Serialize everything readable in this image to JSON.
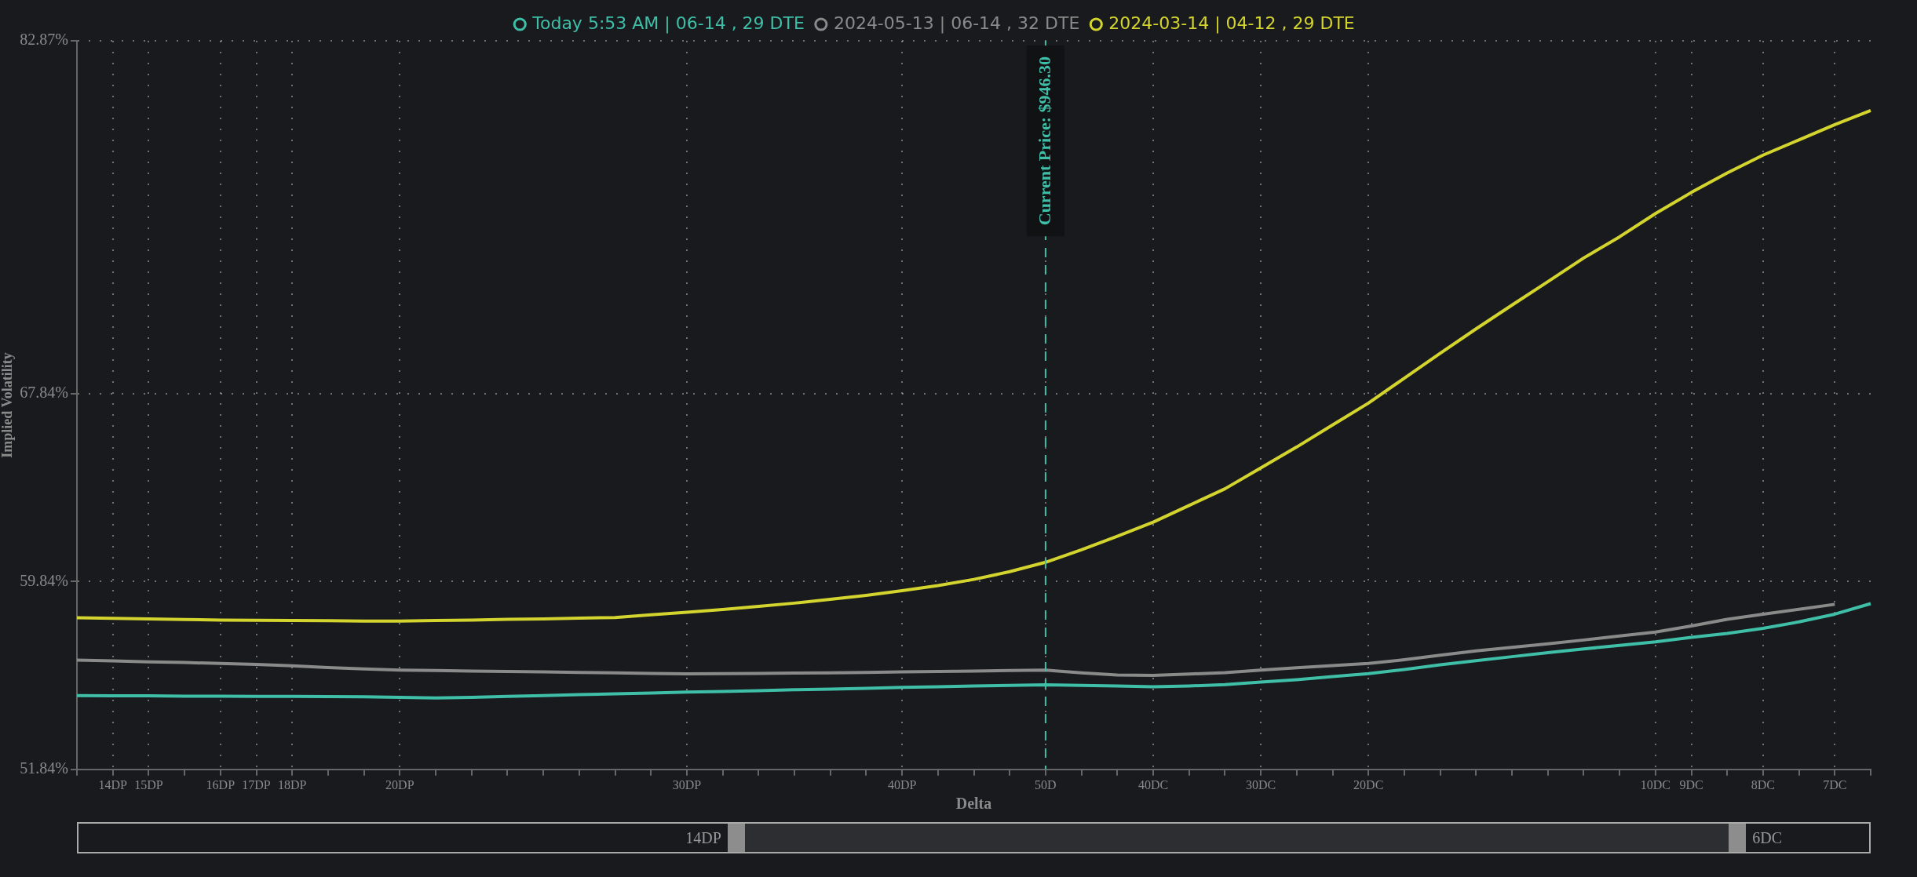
{
  "chart_data": {
    "type": "line",
    "xlabel": "Delta",
    "ylabel": "Implied Volatility",
    "categories": [
      null,
      "14DP",
      "15DP",
      null,
      "16DP",
      "17DP",
      "18DP",
      null,
      null,
      "20DP",
      null,
      null,
      null,
      null,
      null,
      null,
      null,
      "30DP",
      null,
      null,
      null,
      null,
      null,
      "40DP",
      null,
      null,
      null,
      "50D",
      null,
      null,
      "40DC",
      null,
      null,
      "30DC",
      null,
      null,
      "20DC",
      null,
      null,
      null,
      null,
      null,
      null,
      null,
      "10DC",
      "9DC",
      null,
      "8DC",
      null,
      "7DC",
      null
    ],
    "ylim": [
      51.84,
      82.87
    ],
    "yticks": [
      {
        "value": 51.84,
        "label": "51.84%"
      },
      {
        "value": 59.84,
        "label": "59.84%"
      },
      {
        "value": 67.84,
        "label": "67.84%"
      },
      {
        "value": 82.87,
        "label": "82.87%"
      }
    ],
    "series": [
      {
        "name": "Today 5:53 AM | 06-14 , 29 DTE",
        "color": "#3fbfa8",
        "values": [
          54.98,
          54.97,
          54.97,
          54.96,
          54.96,
          54.95,
          54.95,
          54.94,
          54.93,
          54.91,
          54.88,
          54.91,
          54.95,
          54.98,
          55.02,
          55.06,
          55.09,
          55.13,
          55.16,
          55.19,
          55.23,
          55.26,
          55.29,
          55.33,
          55.36,
          55.39,
          55.42,
          55.44,
          55.42,
          55.39,
          55.36,
          55.39,
          55.45,
          55.56,
          55.66,
          55.79,
          55.92,
          56.09,
          56.29,
          56.47,
          56.64,
          56.81,
          56.97,
          57.12,
          57.27,
          57.46,
          57.63,
          57.85,
          58.12,
          58.45,
          58.9
        ]
      },
      {
        "name": "2024-05-13 | 06-14 , 32 DTE",
        "color": "#8a8a8a",
        "values": [
          56.49,
          56.46,
          56.42,
          56.39,
          56.35,
          56.31,
          56.25,
          56.18,
          56.12,
          56.07,
          56.05,
          56.03,
          56.01,
          55.99,
          55.97,
          55.95,
          55.93,
          55.91,
          55.92,
          55.93,
          55.94,
          55.95,
          55.97,
          55.99,
          56.01,
          56.03,
          56.05,
          56.07,
          55.95,
          55.86,
          55.84,
          55.9,
          55.96,
          56.07,
          56.17,
          56.26,
          56.35,
          56.51,
          56.7,
          56.89,
          57.04,
          57.19,
          57.35,
          57.52,
          57.69,
          57.95,
          58.23,
          58.45,
          58.66,
          58.87,
          null
        ]
      },
      {
        "name": "2024-03-14 | 04-12 , 29 DTE",
        "color": "#d4d42e",
        "values": [
          58.3,
          58.27,
          58.25,
          58.22,
          58.2,
          58.19,
          58.18,
          58.17,
          58.16,
          58.16,
          58.18,
          58.2,
          58.23,
          58.25,
          58.28,
          58.31,
          58.42,
          58.53,
          58.65,
          58.78,
          58.92,
          59.08,
          59.25,
          59.45,
          59.67,
          59.93,
          60.26,
          60.66,
          61.19,
          61.77,
          62.37,
          63.08,
          63.79,
          64.68,
          65.57,
          66.51,
          67.44,
          68.5,
          69.56,
          70.6,
          71.61,
          72.61,
          73.62,
          74.52,
          75.51,
          76.41,
          77.24,
          78.0,
          78.65,
          79.3,
          79.9
        ]
      }
    ],
    "ref_lines": [
      {
        "axis": "x",
        "value": "50D",
        "label": "Current Price: $946.30",
        "color": "#3fbfa8",
        "line_style": "dashed"
      }
    ],
    "annotations": [
      "14DP",
      "6DC"
    ],
    "grid": true,
    "legend": "top",
    "marker": "none",
    "line_style": "solid"
  }
}
